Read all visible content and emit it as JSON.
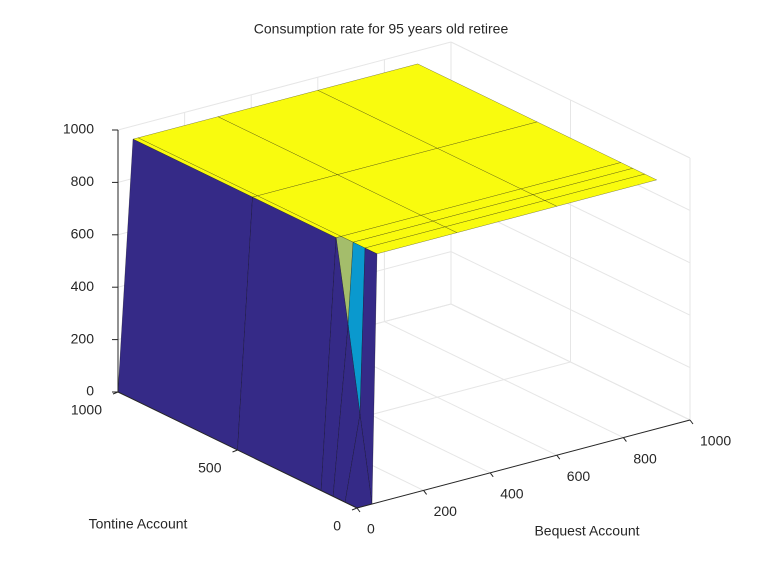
{
  "chart_data": {
    "type": "surface3d",
    "title": "Consumption rate for 95 years old retiree",
    "xlabel": "Bequest Account",
    "ylabel": "Tontine Account",
    "x": [
      0,
      45,
      60,
      300,
      600,
      900
    ],
    "y": [
      0,
      50,
      100,
      150,
      500,
      1000
    ],
    "z": [
      [
        0,
        0,
        950,
        950,
        950,
        950
      ],
      [
        0,
        320,
        950,
        950,
        950,
        950
      ],
      [
        0,
        640,
        950,
        950,
        950,
        950
      ],
      [
        0,
        950,
        950,
        950,
        950,
        950
      ],
      [
        0,
        950,
        950,
        950,
        950,
        950
      ],
      [
        0,
        950,
        950,
        950,
        950,
        950
      ]
    ],
    "colormap": [
      "#352a87",
      "#0f5cdd",
      "#1481d6",
      "#06a4ca",
      "#2eb7a4",
      "#87bf77",
      "#d1bb59",
      "#fec832",
      "#f9fb0e"
    ],
    "edgecolor": "#000000",
    "xlim": [
      0,
      1000
    ],
    "xticks": [
      0,
      200,
      400,
      600,
      800,
      1000
    ],
    "ylim": [
      0,
      1000
    ],
    "yticks": [
      0,
      500,
      1000
    ],
    "zlim": [
      0,
      1000
    ],
    "zticks": [
      0,
      200,
      400,
      600,
      800,
      1000
    ],
    "grid": true
  }
}
